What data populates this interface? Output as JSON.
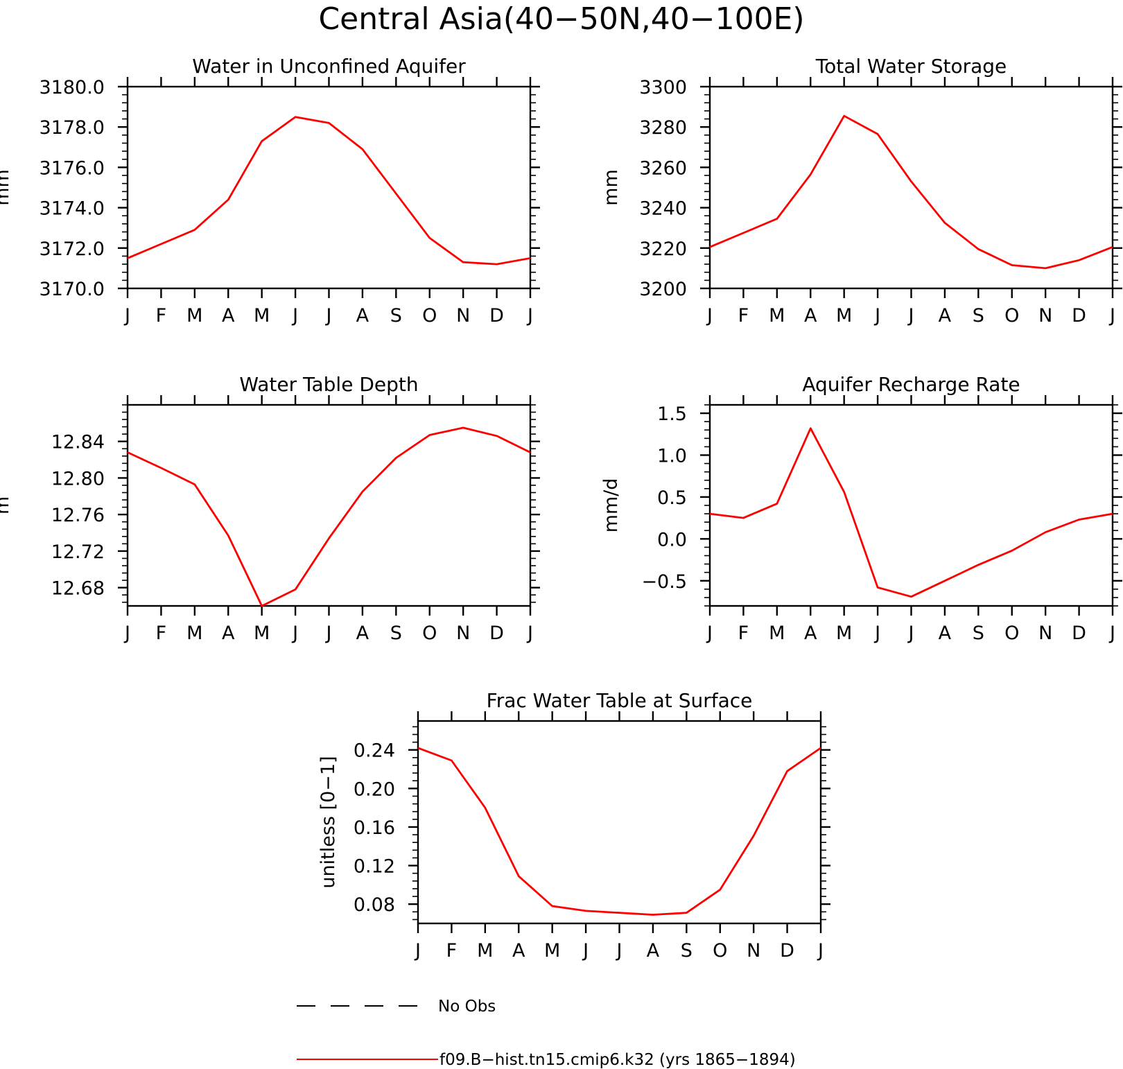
{
  "title": "Central Asia(40−50N,40−100E)",
  "months": [
    "J",
    "F",
    "M",
    "A",
    "M",
    "J",
    "J",
    "A",
    "S",
    "O",
    "N",
    "D",
    "J"
  ],
  "legend": {
    "obs_label": "No Obs",
    "model_label": "f09.B−hist.tn15.cmip6.k32 (yrs 1865−1894)",
    "model_color": "#ff0000",
    "obs_color": "#000000"
  },
  "chart_data": [
    {
      "type": "line",
      "title": "Water in Unconfined Aquifer",
      "ylabel": "mm",
      "ylim": [
        3170,
        3180
      ],
      "yticks": [
        3170,
        3172,
        3174,
        3176,
        3178,
        3180
      ],
      "ytick_labels": [
        "3170.0",
        "3172.0",
        "3174.0",
        "3176.0",
        "3178.0",
        "3180.0"
      ],
      "yminor_step": 0.4,
      "series": [
        {
          "values": [
            3171.5,
            3172.2,
            3172.9,
            3174.4,
            3177.3,
            3178.5,
            3178.2,
            3176.9,
            3174.7,
            3172.5,
            3171.3,
            3171.2,
            3171.5
          ]
        }
      ]
    },
    {
      "type": "line",
      "title": "Total Water Storage",
      "ylabel": "mm",
      "ylim": [
        3200,
        3300
      ],
      "yticks": [
        3200,
        3220,
        3240,
        3260,
        3280,
        3300
      ],
      "ytick_labels": [
        "3200",
        "3220",
        "3240",
        "3260",
        "3280",
        "3300"
      ],
      "yminor_step": 4,
      "series": [
        {
          "values": [
            3220.5,
            3227.5,
            3234.5,
            3256.5,
            3285.5,
            3276.5,
            3253,
            3232.5,
            3219.5,
            3211.5,
            3210,
            3214,
            3220.5
          ]
        }
      ]
    },
    {
      "type": "line",
      "title": "Water Table Depth",
      "ylabel": "m",
      "ylim": [
        12.66,
        12.88
      ],
      "yticks": [
        12.68,
        12.72,
        12.76,
        12.8,
        12.84
      ],
      "ytick_labels": [
        "12.68",
        "12.72",
        "12.76",
        "12.80",
        "12.84"
      ],
      "yminor_step": 0.008,
      "series": [
        {
          "values": [
            12.828,
            12.811,
            12.793,
            12.737,
            12.66,
            12.678,
            12.734,
            12.785,
            12.822,
            12.847,
            12.855,
            12.846,
            12.828
          ]
        }
      ]
    },
    {
      "type": "line",
      "title": "Aquifer Recharge Rate",
      "ylabel": "mm/d",
      "ylim": [
        -0.8,
        1.6
      ],
      "yticks": [
        -0.5,
        0.0,
        0.5,
        1.0,
        1.5
      ],
      "ytick_labels": [
        "−0.5",
        "0.0",
        "0.5",
        "1.0",
        "1.5"
      ],
      "yminor_step": 0.1,
      "series": [
        {
          "values": [
            0.3,
            0.25,
            0.42,
            1.32,
            0.56,
            -0.58,
            -0.69,
            -0.5,
            -0.31,
            -0.14,
            0.08,
            0.23,
            0.3
          ]
        }
      ]
    },
    {
      "type": "line",
      "title": "Frac Water Table at Surface",
      "ylabel": "unitless [0−1]",
      "ylim": [
        0.06,
        0.27
      ],
      "yticks": [
        0.08,
        0.12,
        0.16,
        0.2,
        0.24
      ],
      "ytick_labels": [
        "0.08",
        "0.12",
        "0.16",
        "0.20",
        "0.24"
      ],
      "yminor_step": 0.008,
      "series": [
        {
          "values": [
            0.242,
            0.229,
            0.18,
            0.109,
            0.078,
            0.073,
            0.071,
            0.069,
            0.071,
            0.095,
            0.151,
            0.218,
            0.242
          ]
        }
      ]
    }
  ]
}
